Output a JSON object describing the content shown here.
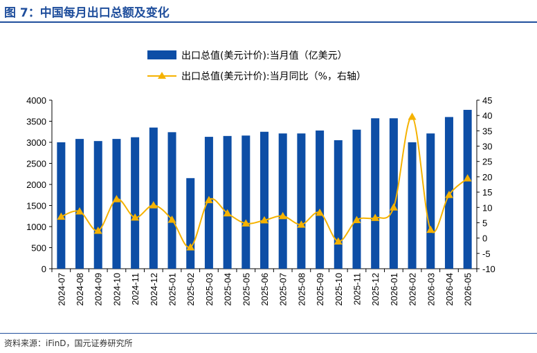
{
  "header": {
    "title": "图 7：中国每月出口总额及变化"
  },
  "footer": {
    "source": "资料来源：iFinD，国元证券研究所"
  },
  "chart_data": {
    "type": "bar",
    "categories": [
      "2024-07",
      "2024-08",
      "2024-09",
      "2024-10",
      "2024-11",
      "2024-12",
      "2025-01",
      "2025-02",
      "2025-03",
      "2025-04",
      "2025-05",
      "2025-06",
      "2025-07",
      "2025-08",
      "2025-09",
      "2025-10",
      "2025-11",
      "2025-12",
      "2026-01",
      "2026-02",
      "2026-03",
      "2026-04",
      "2026-05"
    ],
    "series": [
      {
        "name": "出口总值(美元计价):当月值（亿美元）",
        "type": "bar",
        "axis": "left",
        "color": "#0D4EA6",
        "values": [
          3000,
          3080,
          3030,
          3080,
          3120,
          3350,
          3240,
          2150,
          3130,
          3150,
          3160,
          3250,
          3210,
          3210,
          3280,
          3050,
          3300,
          3570,
          3570,
          3000,
          3210,
          3600,
          3770
        ]
      },
      {
        "name": "出口总值(美元计价):当月同比（%，右轴）",
        "type": "line",
        "axis": "right",
        "color": "#F5B200",
        "values": [
          7.0,
          8.7,
          2.4,
          12.7,
          6.7,
          10.7,
          6.0,
          -3.0,
          12.4,
          8.1,
          4.8,
          5.8,
          7.2,
          4.4,
          8.3,
          -1.1,
          5.9,
          6.6,
          10.0,
          39.6,
          2.7,
          14.1,
          19.5
        ]
      }
    ],
    "y_left": {
      "min": 0,
      "max": 4000,
      "ticks": [
        "0",
        "500",
        "1000",
        "1500",
        "2000",
        "2500",
        "3000",
        "3500",
        "4000"
      ]
    },
    "y_right": {
      "min": -10,
      "max": 45,
      "ticks": [
        "-10",
        "-5",
        "0",
        "5",
        "10",
        "15",
        "20",
        "25",
        "30",
        "35",
        "40",
        "45"
      ]
    },
    "grid": false,
    "legend_position": "top-left"
  }
}
